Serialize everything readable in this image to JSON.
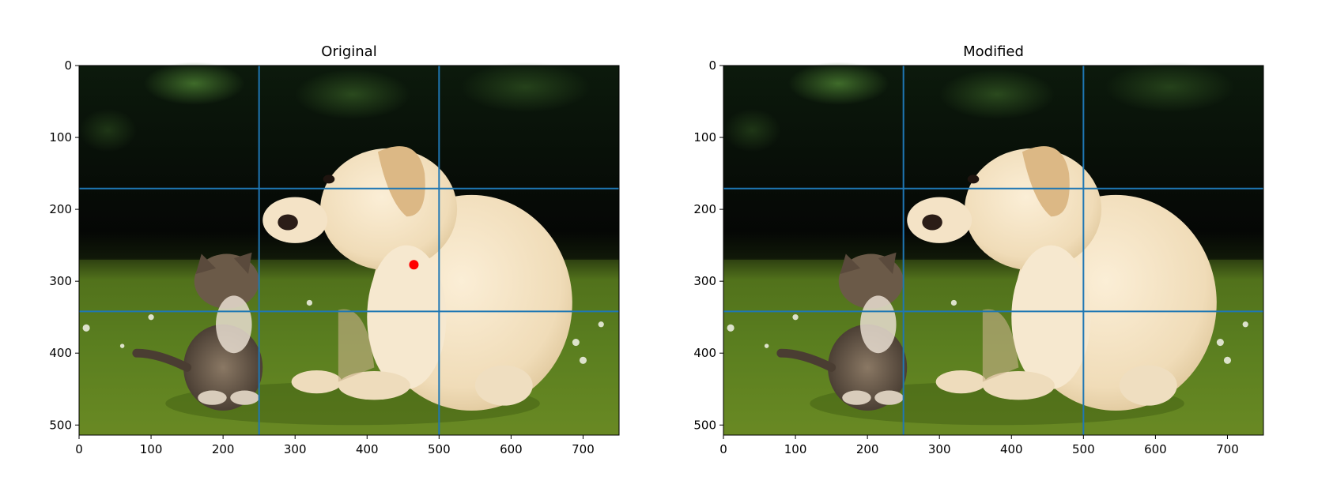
{
  "colors": {
    "grid_line": "#1f77b4",
    "marker": "#ff0000",
    "axes": "#000000"
  },
  "chart_data": [
    {
      "type": "image",
      "title": "Original",
      "image_depicts": "puppy-and-kitten-on-grass",
      "xlim": [
        0,
        750
      ],
      "ylim": [
        514,
        0
      ],
      "x_ticks": [
        0,
        100,
        200,
        300,
        400,
        500,
        600,
        700
      ],
      "y_ticks": [
        0,
        100,
        200,
        300,
        400,
        500
      ],
      "x_tick_labels": [
        "0",
        "100",
        "200",
        "300",
        "400",
        "500",
        "600",
        "700"
      ],
      "y_tick_labels": [
        "0",
        "100",
        "200",
        "300",
        "400",
        "500"
      ],
      "vertical_lines": [
        250,
        500
      ],
      "horizontal_lines": [
        171,
        342
      ],
      "points": [
        {
          "x": 465,
          "y": 277
        }
      ]
    },
    {
      "type": "image",
      "title": "Modified",
      "image_depicts": "puppy-and-kitten-on-grass",
      "xlim": [
        0,
        750
      ],
      "ylim": [
        514,
        0
      ],
      "x_ticks": [
        0,
        100,
        200,
        300,
        400,
        500,
        600,
        700
      ],
      "y_ticks": [
        0,
        100,
        200,
        300,
        400,
        500
      ],
      "x_tick_labels": [
        "0",
        "100",
        "200",
        "300",
        "400",
        "500",
        "600",
        "700"
      ],
      "y_tick_labels": [
        "0",
        "100",
        "200",
        "300",
        "400",
        "500"
      ],
      "vertical_lines": [
        250,
        500
      ],
      "horizontal_lines": [
        171,
        342
      ],
      "points": []
    }
  ]
}
